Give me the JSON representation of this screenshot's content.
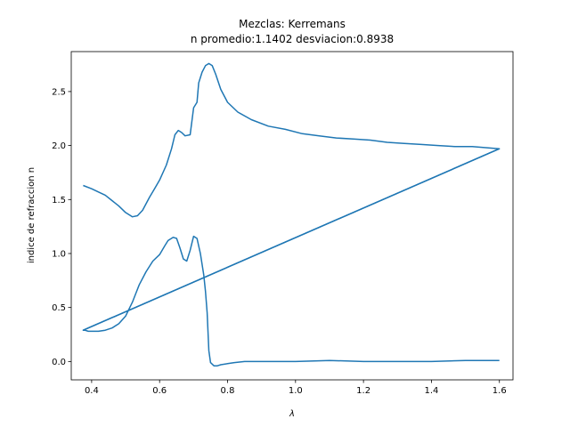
{
  "chart_data": {
    "type": "line",
    "title": "Mezclas: Kerremans",
    "subtitle": "n promedio:1.1402 desviacion:0.8938",
    "xlabel": "λ",
    "ylabel": "indice de refraccion n",
    "xlim": [
      0.34,
      1.64
    ],
    "ylim": [
      -0.17,
      2.87
    ],
    "xticks": [
      0.4,
      0.6,
      0.8,
      1.0,
      1.2,
      1.4,
      1.6
    ],
    "xtick_labels": [
      "0.4",
      "0.6",
      "0.8",
      "1.0",
      "1.2",
      "1.4",
      "1.6"
    ],
    "yticks": [
      0.0,
      0.5,
      1.0,
      1.5,
      2.0,
      2.5
    ],
    "ytick_labels": [
      "0.0",
      "0.5",
      "1.0",
      "1.5",
      "2.0",
      "2.5"
    ],
    "grid": false,
    "line_color": "#1f77b4",
    "series": [
      {
        "x": [
          0.375,
          0.4,
          0.42,
          0.44,
          0.46,
          0.48,
          0.5,
          0.52,
          0.535,
          0.55,
          0.57,
          0.585,
          0.6,
          0.62,
          0.635,
          0.645,
          0.655,
          0.665,
          0.675,
          0.69,
          0.7,
          0.71,
          0.715,
          0.725,
          0.735,
          0.745,
          0.755,
          0.765,
          0.78,
          0.8,
          0.83,
          0.87,
          0.92,
          0.97,
          1.02,
          1.07,
          1.12,
          1.17,
          1.22,
          1.27,
          1.32,
          1.37,
          1.42,
          1.47,
          1.52,
          1.56,
          1.6,
          0.375,
          0.38,
          0.39,
          0.4,
          0.42,
          0.44,
          0.46,
          0.48,
          0.5,
          0.52,
          0.53,
          0.54,
          0.56,
          0.58,
          0.6,
          0.615,
          0.625,
          0.64,
          0.65,
          0.66,
          0.67,
          0.68,
          0.69,
          0.7,
          0.71,
          0.72,
          0.73,
          0.735,
          0.74,
          0.745,
          0.75,
          0.76,
          0.77,
          0.78,
          0.8,
          0.82,
          0.85,
          0.9,
          0.95,
          1.0,
          1.1,
          1.2,
          1.3,
          1.4,
          1.5,
          1.6
        ],
        "y": [
          1.63,
          1.6,
          1.57,
          1.54,
          1.49,
          1.44,
          1.38,
          1.34,
          1.35,
          1.4,
          1.52,
          1.6,
          1.68,
          1.82,
          1.97,
          2.1,
          2.14,
          2.12,
          2.09,
          2.1,
          2.35,
          2.4,
          2.58,
          2.68,
          2.74,
          2.76,
          2.74,
          2.66,
          2.52,
          2.4,
          2.31,
          2.24,
          2.18,
          2.15,
          2.11,
          2.09,
          2.07,
          2.06,
          2.05,
          2.03,
          2.02,
          2.01,
          2.0,
          1.99,
          1.99,
          1.98,
          1.97,
          0.29,
          0.29,
          0.28,
          0.28,
          0.28,
          0.29,
          0.31,
          0.35,
          0.42,
          0.55,
          0.63,
          0.71,
          0.83,
          0.93,
          0.99,
          1.07,
          1.12,
          1.15,
          1.14,
          1.05,
          0.95,
          0.93,
          1.03,
          1.16,
          1.14,
          1.0,
          0.8,
          0.65,
          0.45,
          0.1,
          -0.01,
          -0.04,
          -0.04,
          -0.03,
          -0.02,
          -0.01,
          0.0,
          0.0,
          0.0,
          0.0,
          0.01,
          0.0,
          0.0,
          0.0,
          0.01,
          0.01
        ]
      },
      {
        "x": [
          1.6,
          0.375
        ],
        "y": [
          1.97,
          0.29
        ]
      }
    ]
  }
}
